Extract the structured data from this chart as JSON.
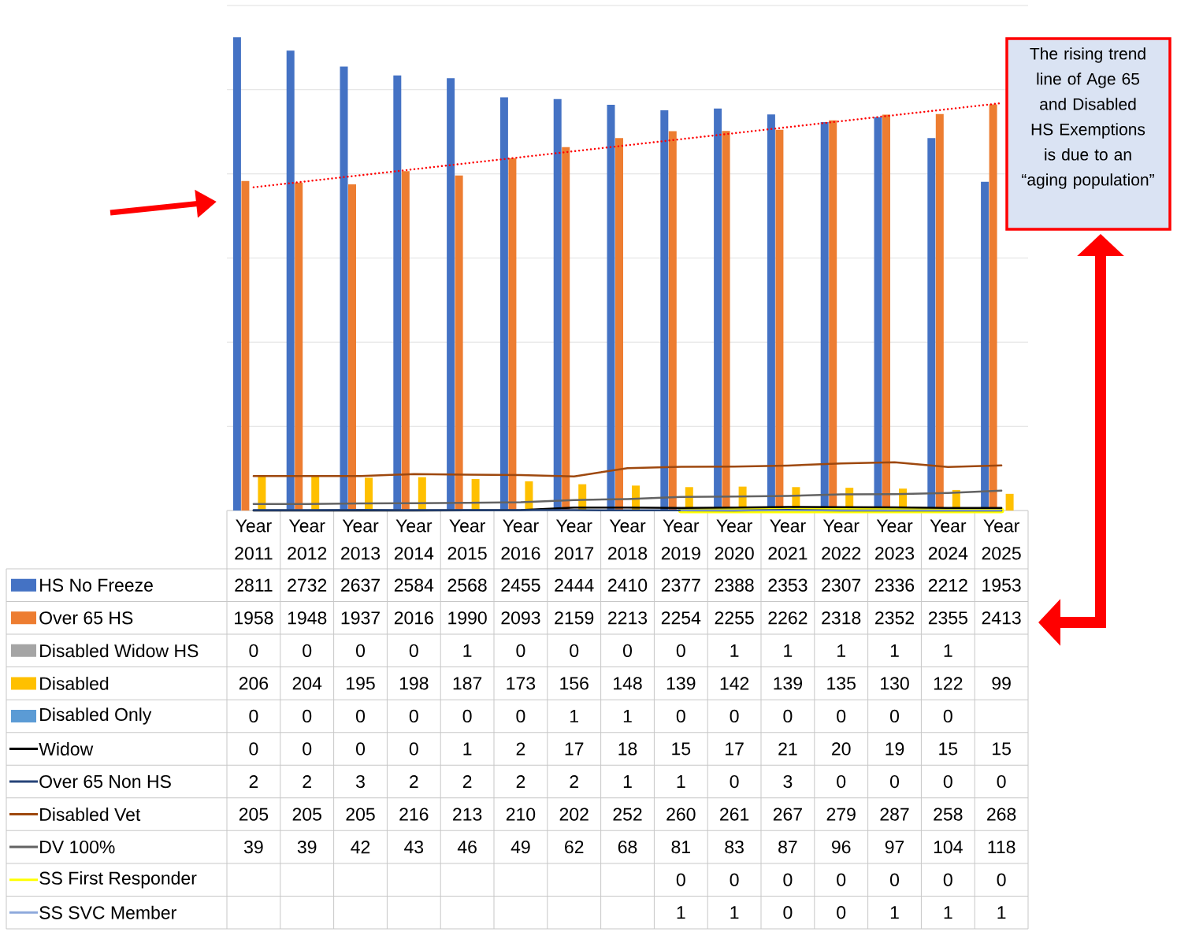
{
  "chart_data": {
    "type": "bar",
    "categories": [
      "Year 2011",
      "Year 2012",
      "Year 2013",
      "Year 2014",
      "Year 2015",
      "Year 2016",
      "Year 2017",
      "Year 2018",
      "Year 2019",
      "Year 2020",
      "Year 2021",
      "Year 2022",
      "Year 2023",
      "Year 2024",
      "Year 2025"
    ],
    "series": [
      {
        "name": "HS No Freeze",
        "color": "#4472c4",
        "values": [
          2811,
          2732,
          2637,
          2584,
          2568,
          2455,
          2444,
          2410,
          2377,
          2388,
          2353,
          2307,
          2336,
          2212,
          1953
        ]
      },
      {
        "name": "Over 65 HS",
        "color": "#ed7d31",
        "values": [
          1958,
          1948,
          1937,
          2016,
          1990,
          2093,
          2159,
          2213,
          2254,
          2255,
          2262,
          2318,
          2352,
          2355,
          2413
        ]
      },
      {
        "name": "Disabled Widow HS",
        "color": "#a5a5a5",
        "values": [
          0,
          0,
          0,
          0,
          1,
          0,
          0,
          0,
          0,
          1,
          1,
          1,
          1,
          1,
          null
        ]
      },
      {
        "name": "Disabled",
        "color": "#ffc000",
        "values": [
          206,
          204,
          195,
          198,
          187,
          173,
          156,
          148,
          139,
          142,
          139,
          135,
          130,
          122,
          99
        ]
      },
      {
        "name": "Disabled Only",
        "color": "#5b9bd5",
        "values": [
          0,
          0,
          0,
          0,
          0,
          0,
          1,
          1,
          0,
          0,
          0,
          0,
          0,
          0,
          null
        ]
      },
      {
        "name": "Widow",
        "type": "line",
        "color": "#000000",
        "values": [
          0,
          0,
          0,
          0,
          1,
          2,
          17,
          18,
          15,
          17,
          21,
          20,
          19,
          15,
          15
        ]
      },
      {
        "name": "Over 65 Non HS",
        "type": "line",
        "color": "#264478",
        "values": [
          2,
          2,
          3,
          2,
          2,
          2,
          2,
          1,
          1,
          0,
          3,
          0,
          0,
          0,
          0
        ]
      },
      {
        "name": "Disabled Vet",
        "type": "line",
        "color": "#9e480e",
        "values": [
          205,
          205,
          205,
          216,
          213,
          210,
          202,
          252,
          260,
          261,
          267,
          279,
          287,
          258,
          268
        ]
      },
      {
        "name": "DV 100%",
        "type": "line",
        "color": "#636363",
        "values": [
          39,
          39,
          42,
          43,
          46,
          49,
          62,
          68,
          81,
          83,
          87,
          96,
          97,
          104,
          118
        ]
      },
      {
        "name": "SS First Responder",
        "type": "line",
        "color": "#ffff00",
        "values": [
          null,
          null,
          null,
          null,
          null,
          null,
          null,
          null,
          0,
          0,
          0,
          0,
          0,
          0,
          0
        ]
      },
      {
        "name": "SS SVC Member",
        "type": "line",
        "color": "#8faadc",
        "values": [
          null,
          null,
          null,
          null,
          null,
          null,
          null,
          null,
          1,
          1,
          0,
          0,
          1,
          1,
          1
        ]
      },
      {
        "type": "line",
        "color": "#ff0000",
        "line_style": "dotted",
        "x": [
          "Year 2011",
          "Year 2025"
        ],
        "values": [
          1920,
          2420
        ],
        "value_labels": [
          null,
          null
        ]
      }
    ],
    "ylim": [
      0,
      3000
    ],
    "yticks": [
      {
        "value": 0,
        "label": null
      },
      {
        "value": 500,
        "label": null
      },
      {
        "value": 1000,
        "label": null
      },
      {
        "value": 1500,
        "label": null
      },
      {
        "value": 2000,
        "label": null
      },
      {
        "value": 2500,
        "label": null
      },
      {
        "value": 3000,
        "label": null
      }
    ],
    "grid": "y",
    "legend": "bottom left",
    "tick_labels": "x",
    "data_labels": true,
    "annotations": [
      "The rising trend line of Age 65 and Disabled HS Exemptions is due to an “aging population”"
    ]
  }
}
